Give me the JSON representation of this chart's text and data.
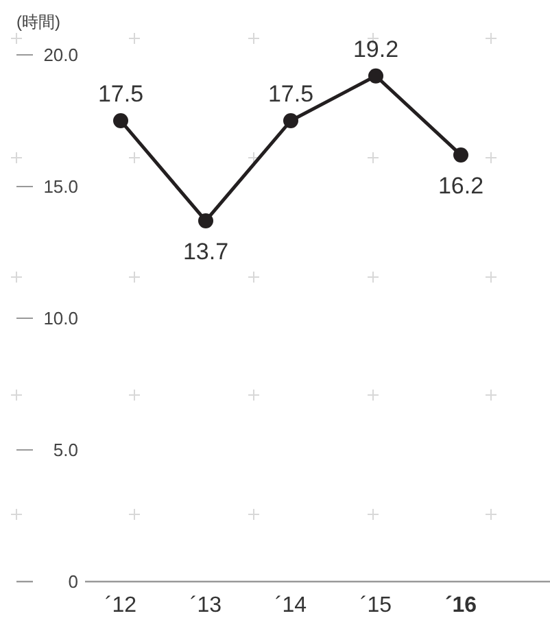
{
  "chart_data": {
    "type": "line",
    "ylabel": "(時間)",
    "categories": [
      "´12",
      "´13",
      "´14",
      "´15",
      "**´16**"
    ],
    "series": [
      {
        "color": "#231f20",
        "values": [
          17.5,
          13.7,
          17.5,
          19.2,
          16.2
        ]
      }
    ],
    "ylim": [
      0,
      20
    ],
    "yticks": [
      {
        "value": 0,
        "label": "0"
      },
      {
        "value": 5,
        "label": "5.0"
      },
      {
        "value": 10,
        "label": "10.0"
      },
      {
        "value": 15,
        "label": "15.0"
      },
      {
        "value": 20,
        "label": "20.0"
      }
    ],
    "marker": "circle",
    "data_labels": true,
    "grid": false
  }
}
